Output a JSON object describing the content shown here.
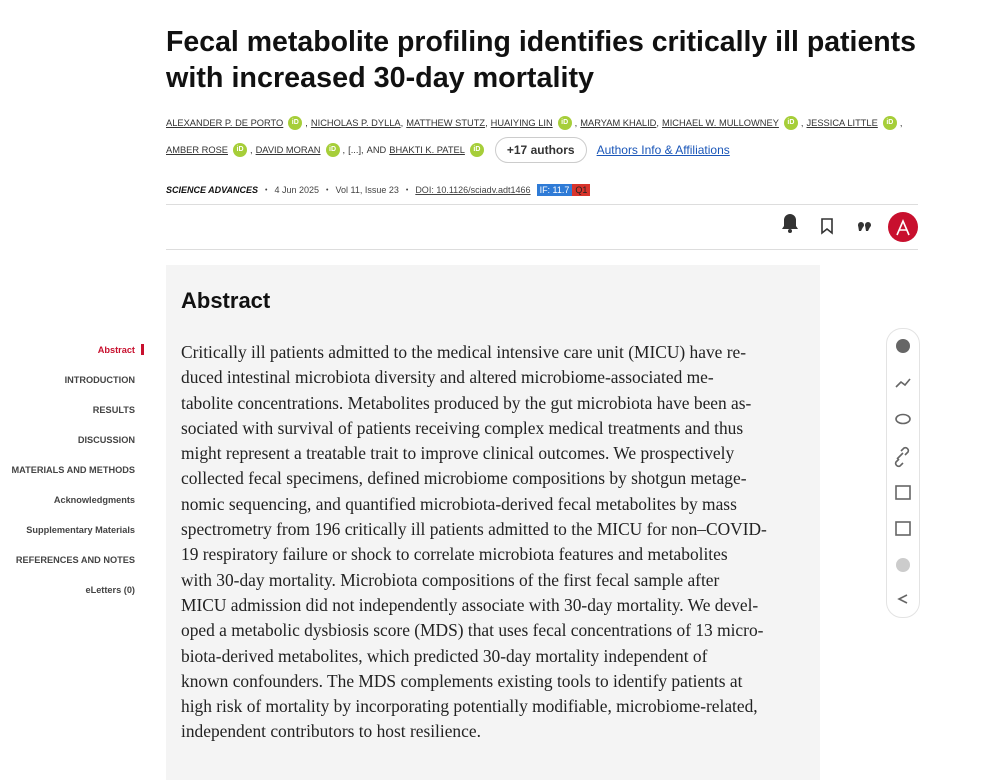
{
  "article": {
    "title_lines": [
      "Fecal metabolite profiling identifies critically ill patients",
      "with increased 30-day mortality"
    ],
    "authors": [
      {
        "name": "ALEXANDER P. DE PORTO",
        "orcid": true
      },
      {
        "name": "NICHOLAS P. DYLLA",
        "orcid": false
      },
      {
        "name": "MATTHEW STUTZ",
        "orcid": false
      },
      {
        "name": "HUAIYING LIN",
        "orcid": true
      },
      {
        "name": "MARYAM KHALID",
        "orcid": false
      },
      {
        "name": "MICHAEL W. MULLOWNEY",
        "orcid": true
      },
      {
        "name": "JESSICA LITTLE",
        "orcid": true
      },
      {
        "name": "AMBER ROSE",
        "orcid": true
      },
      {
        "name": "DAVID MORAN",
        "orcid": true
      }
    ],
    "separator": ",",
    "more": "[...]",
    "conjunction": "AND",
    "last_author": {
      "name": "BHAKTI K. PATEL",
      "orcid": true
    },
    "orcid_label": "iD",
    "more_authors_button": "+17 authors",
    "affiliations_link": "Authors Info & Affiliations",
    "meta": {
      "journal": "SCIENCE ADVANCES",
      "dot": "•",
      "date": "4 Jun 2025",
      "issue": "Vol 11, Issue 23",
      "doi": "DOI: 10.1126/sciadv.adt1466",
      "impact_factor": "IF: 11.7",
      "quartile": "Q1"
    }
  },
  "nav": {
    "items": [
      "Abstract",
      "INTRODUCTION",
      "RESULTS",
      "DISCUSSION",
      "MATERIALS AND METHODS",
      "Acknowledgments",
      "Supplementary Materials",
      "REFERENCES AND NOTES",
      "eLetters (0)"
    ],
    "active": 0
  },
  "abstract": {
    "heading": "Abstract",
    "lines": [
      "Critically ill patients admitted to the medical intensive care unit (MICU) have re-",
      "duced intestinal microbiota diversity and altered microbiome-associated me-",
      "tabolite concentrations. Metabolites produced by the gut microbiota have been as-",
      "sociated with survival of patients receiving complex medical treatments and thus",
      "might represent a treatable trait to improve clinical outcomes. We prospectively",
      "collected fecal specimens, defined microbiome compositions by shotgun metage-",
      "nomic sequencing, and quantified microbiota-derived fecal metabolites by mass",
      "spectrometry from 196 critically ill patients admitted to the MICU for non–COVID-",
      "19 respiratory failure or shock to correlate microbiota features and metabolites",
      "with 30-day mortality. Microbiota compositions of the first fecal sample after",
      "MICU admission did not independently associate with 30-day mortality. We devel-",
      "oped a metabolic dysbiosis score (MDS) that uses fecal concentrations of 13 micro-",
      "biota-derived metabolites, which predicted 30-day mortality independent of",
      "known confounders. The MDS complements existing tools to identify patients at",
      "high risk of mortality by incorporating potentially modifiable, microbiome-related,",
      "independent contributors to host resilience."
    ]
  }
}
